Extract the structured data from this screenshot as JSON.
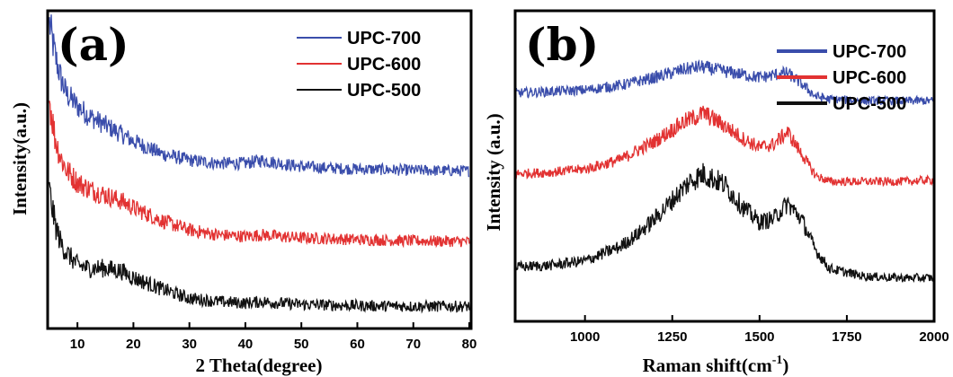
{
  "chart_data": [
    {
      "panel_label": "(a)",
      "type": "line",
      "title": "",
      "xlabel": "2 Theta(degree)",
      "ylabel": "Intensity(a.u.)",
      "xlim": [
        5,
        80
      ],
      "ylim": [
        0,
        100
      ],
      "x_ticks": [
        10,
        20,
        30,
        40,
        50,
        60,
        70,
        80
      ],
      "y_ticks_visible": false,
      "grid": false,
      "legend_position": "top-right",
      "noise": 1.8,
      "series": [
        {
          "name": "UPC-700",
          "color": "#3a4dab",
          "x": [
            5,
            6,
            7,
            8,
            10,
            12,
            15,
            18,
            20,
            25,
            30,
            35,
            40,
            43,
            46,
            50,
            55,
            60,
            65,
            70,
            75,
            80
          ],
          "y": [
            96,
            86,
            79,
            74,
            70,
            67,
            64,
            61,
            59,
            55,
            53,
            52,
            52,
            53,
            52,
            51,
            50.5,
            50.2,
            50,
            49.8,
            49.7,
            49.6
          ]
        },
        {
          "name": "UPC-600",
          "color": "#e23232",
          "x": [
            5,
            6,
            7,
            8,
            10,
            12,
            15,
            18,
            20,
            25,
            30,
            35,
            40,
            43,
            46,
            50,
            55,
            60,
            65,
            70,
            75,
            80
          ],
          "y": [
            72,
            60,
            54,
            50,
            46,
            44,
            42,
            40,
            38,
            34,
            31,
            29.5,
            29,
            29.5,
            29,
            28.5,
            28.3,
            28,
            27.8,
            27.6,
            27.5,
            27.4
          ]
        },
        {
          "name": "UPC-500",
          "color": "#111111",
          "x": [
            5,
            6,
            7,
            8,
            10,
            12,
            15,
            18,
            20,
            25,
            30,
            35,
            40,
            43,
            46,
            50,
            55,
            60,
            65,
            70,
            75,
            80
          ],
          "y": [
            43,
            33,
            27,
            24,
            20,
            19,
            19,
            18,
            16,
            12.5,
            9.5,
            8.5,
            8,
            8.5,
            8,
            7.6,
            7.4,
            7.2,
            7.1,
            7,
            7,
            7
          ]
        }
      ]
    },
    {
      "panel_label": "(b)",
      "type": "line",
      "title": "",
      "xlabel": "Raman shift(cm",
      "xlabel_sup": "-1",
      "xlabel_end": ")",
      "ylabel": "Intensity (a.u.)",
      "xlim": [
        800,
        2000
      ],
      "ylim": [
        0,
        100
      ],
      "x_ticks": [
        1000,
        1250,
        1500,
        1750,
        2000
      ],
      "y_ticks_visible": false,
      "grid": false,
      "legend_position": "top-right",
      "noise": 1.4,
      "series": [
        {
          "name": "UPC-700",
          "color": "#3a4dab",
          "x": [
            800,
            900,
            1000,
            1100,
            1200,
            1280,
            1330,
            1400,
            1450,
            1500,
            1550,
            1580,
            1620,
            1660,
            1700,
            1800,
            1900,
            2000
          ],
          "y": [
            73.5,
            74,
            74.5,
            76,
            78.5,
            81,
            82,
            80.5,
            79.5,
            78.5,
            79.5,
            80,
            76.5,
            72.5,
            71.5,
            71,
            71,
            71
          ]
        },
        {
          "name": "UPC-600",
          "color": "#e23232",
          "x": [
            800,
            900,
            1000,
            1100,
            1200,
            1280,
            1340,
            1400,
            1450,
            1500,
            1540,
            1580,
            1620,
            1660,
            1700,
            1800,
            1900,
            2000
          ],
          "y": [
            47.5,
            48,
            49,
            52,
            58,
            64,
            67,
            63,
            59,
            56,
            57,
            61,
            54,
            47,
            45,
            45,
            45,
            45.5
          ]
        },
        {
          "name": "UPC-500",
          "color": "#111111",
          "x": [
            800,
            900,
            1000,
            1100,
            1150,
            1200,
            1250,
            1300,
            1340,
            1400,
            1450,
            1500,
            1540,
            1580,
            1620,
            1660,
            1700,
            1800,
            1900,
            2000
          ],
          "y": [
            17.5,
            18,
            19.5,
            24,
            28,
            33,
            39,
            45,
            47.5,
            44,
            37,
            32,
            33,
            38,
            33,
            23,
            17,
            14.5,
            14,
            14
          ]
        }
      ]
    }
  ]
}
